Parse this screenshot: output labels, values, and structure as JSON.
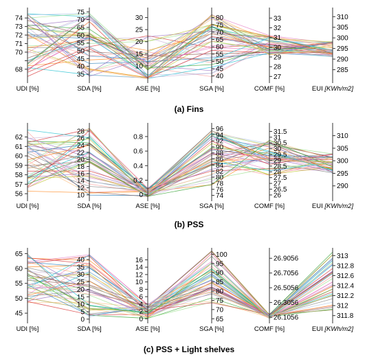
{
  "chart_data": [
    {
      "type": "parallel_coordinates",
      "caption": "(a) Fins",
      "axes": [
        {
          "label": "UDI [%]",
          "ticks": [
            68,
            69,
            70,
            71,
            72,
            73,
            74
          ],
          "tick_labels": [
            "68",
            "",
            "70",
            "71",
            "72",
            "73",
            "74"
          ],
          "range": [
            66.7,
            74.9
          ]
        },
        {
          "label": "SDA [%]",
          "ticks": [
            35,
            40,
            45,
            50,
            55,
            60,
            65,
            70,
            75
          ],
          "tick_labels": [
            "35",
            "40",
            "45",
            "50",
            "55",
            "60",
            "65",
            "70",
            "75"
          ],
          "range": [
            31,
            76
          ]
        },
        {
          "label": "ASE [%]",
          "ticks": [
            10,
            15,
            20,
            25,
            30
          ],
          "tick_labels": [
            "10",
            "15",
            "20",
            "25",
            "30"
          ],
          "range": [
            4,
            33
          ]
        },
        {
          "label": "SGA [%]",
          "ticks": [
            40,
            45,
            50,
            55,
            60,
            65,
            70,
            75,
            80
          ],
          "tick_labels": [
            "40",
            "45",
            "50",
            "55",
            "60",
            "65",
            "70",
            "75",
            "80"
          ],
          "range": [
            37,
            85
          ]
        },
        {
          "label": "COMF [%]",
          "ticks": [
            27,
            28,
            29,
            30,
            31,
            32,
            33
          ],
          "tick_labels": [
            "27",
            "28",
            "29",
            "30",
            "31",
            "32",
            "33"
          ],
          "range": [
            26.6,
            33.8
          ]
        },
        {
          "label": "EUI",
          "label_unit": "[KWh/m2]",
          "ticks": [
            285,
            290,
            295,
            300,
            305,
            310
          ],
          "tick_labels": [
            "285",
            "290",
            "295",
            "300",
            "305",
            "310"
          ],
          "range": [
            280,
            313
          ]
        }
      ]
    },
    {
      "type": "parallel_coordinates",
      "caption": "(b) PSS",
      "axes": [
        {
          "label": "UDI [%]",
          "ticks": [
            56,
            57,
            58,
            59,
            60,
            61,
            62
          ],
          "tick_labels": [
            "56",
            "57",
            "58",
            "59",
            "60",
            "61",
            "62"
          ],
          "range": [
            55.5,
            63.2
          ]
        },
        {
          "label": "SDA [%]",
          "ticks": [
            10,
            12,
            14,
            16,
            18,
            20,
            22,
            24,
            26,
            28
          ],
          "tick_labels": [
            "10",
            "12",
            "14",
            "16",
            "18",
            "20",
            "22",
            "24",
            "26",
            "28"
          ],
          "range": [
            9,
            29.5
          ]
        },
        {
          "label": "ASE [%]",
          "ticks": [
            0,
            0.2,
            0.4,
            0.6,
            0.8
          ],
          "tick_labels": [
            "0",
            "0.2",
            "0.4",
            "0.6",
            "0.8"
          ],
          "range": [
            -0.05,
            0.95
          ]
        },
        {
          "label": "SGA [%]",
          "ticks": [
            74,
            76,
            78,
            80,
            82,
            84,
            86,
            88,
            90,
            92,
            94,
            96
          ],
          "tick_labels": [
            "74",
            "76",
            "78",
            "80",
            "82",
            "84",
            "86",
            "88",
            "90",
            "92",
            "94",
            "96"
          ],
          "range": [
            73,
            97
          ]
        },
        {
          "label": "COMF [%]",
          "ticks": [
            26,
            26.5,
            27,
            27.5,
            28,
            28.5,
            29,
            29.5,
            30,
            30.5,
            31,
            31.5
          ],
          "tick_labels": [
            "26",
            "26.5",
            "27",
            "27.5",
            "28",
            "28.5",
            "29",
            "29.5",
            "30",
            "30.5",
            "31",
            "31.5"
          ],
          "range": [
            25.7,
            32
          ]
        },
        {
          "label": "EUI",
          "label_unit": "[KWh/m2]",
          "ticks": [
            290,
            295,
            300,
            305,
            310
          ],
          "tick_labels": [
            "290",
            "295",
            "300",
            "305",
            "310"
          ],
          "range": [
            285,
            314
          ]
        }
      ]
    },
    {
      "type": "parallel_coordinates",
      "caption": "(c) PSS + Light shelves",
      "axes": [
        {
          "label": "UDI [%]",
          "ticks": [
            45,
            50,
            55,
            60,
            65
          ],
          "tick_labels": [
            "45",
            "50",
            "55",
            "60",
            "65"
          ],
          "range": [
            42.5,
            66
          ]
        },
        {
          "label": "SDA [%]",
          "ticks": [
            0,
            5,
            10,
            15,
            20,
            25,
            30,
            35,
            40
          ],
          "tick_labels": [
            "0",
            "5",
            "10",
            "15",
            "20",
            "25",
            "30",
            "35",
            "40"
          ],
          "range": [
            -1,
            46
          ]
        },
        {
          "label": "ASE [%]",
          "ticks": [
            0,
            2,
            4,
            6,
            8,
            10,
            12,
            14,
            16
          ],
          "tick_labels": [
            "0",
            "2",
            "4",
            "6",
            "8",
            "10",
            "12",
            "14",
            "16"
          ],
          "range": [
            -0.5,
            18.5
          ]
        },
        {
          "label": "SGA [%]",
          "ticks": [
            65,
            70,
            75,
            80,
            85,
            90,
            95,
            100
          ],
          "tick_labels": [
            "65",
            "70",
            "75",
            "80",
            "85",
            "90",
            "95",
            "100"
          ],
          "range": [
            64,
            102
          ]
        },
        {
          "label": "COMF [%]",
          "ticks": [
            26.1056,
            26.3056,
            26.5056,
            26.7056,
            26.9056
          ],
          "tick_labels": [
            "26.1056",
            "26.3056",
            "26.5056",
            "26.7056",
            "26.9056"
          ],
          "range": [
            26.06,
            27.01
          ]
        },
        {
          "label": "EUI",
          "label_unit": "[KWh/m2]",
          "ticks": [
            311.8,
            312,
            312.2,
            312.4,
            312.6,
            312.8,
            313
          ],
          "tick_labels": [
            "311.8",
            "312",
            "312.2",
            "312.4",
            "312.6",
            "312.8",
            "313"
          ],
          "range": [
            311.7,
            313.1
          ]
        }
      ]
    }
  ],
  "series_count": 45,
  "colors": [
    "#1f77b4",
    "#ff7f0e",
    "#2ca02c",
    "#d62728",
    "#9467bd",
    "#8c564b",
    "#e377c2",
    "#7f7f7f",
    "#bcbd22",
    "#17becf",
    "#aec7e8",
    "#ffbb78",
    "#98df8a",
    "#ff9896",
    "#c5b0d5"
  ]
}
